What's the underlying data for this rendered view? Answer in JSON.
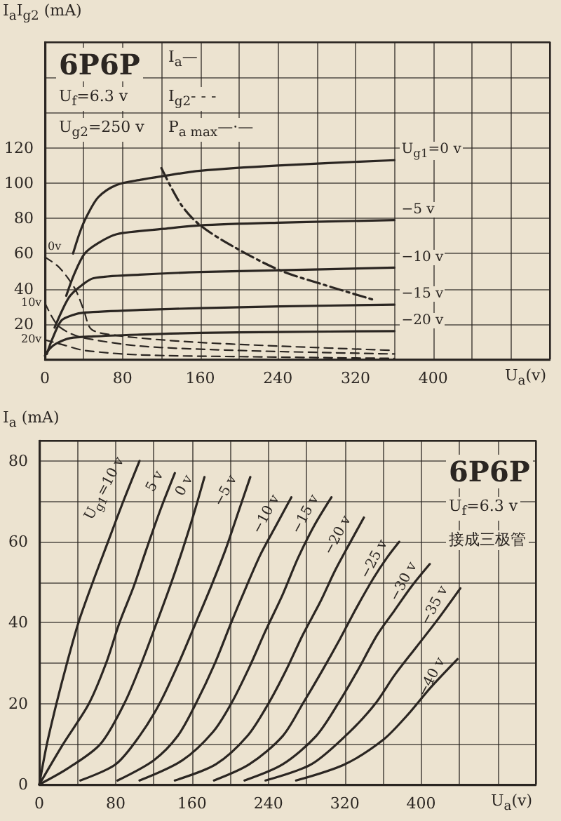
{
  "chart_data": [
    {
      "type": "line",
      "xlabel": "U$_{a}$(v)",
      "ylabel": "I$_{a}$I$_{g2}$ (mA)",
      "annotations": [
        "6P6P",
        "I$_{a}$—",
        "U$_{f}$=6.3 v",
        "I$_{g2}$- - -",
        "U$_{g2}$=250 v",
        "P$_{a max}$—·—"
      ],
      "xlim": [
        0,
        520
      ],
      "xticks": [
        0,
        {
          "value": 40,
          "label": null
        },
        80,
        {
          "value": 120,
          "label": null
        },
        160,
        {
          "value": 200,
          "label": null
        },
        240,
        {
          "value": 280,
          "label": null
        },
        320,
        {
          "value": 360,
          "label": null
        },
        400,
        {
          "value": 440,
          "label": null
        },
        {
          "value": 480,
          "label": null
        },
        {
          "value": 520,
          "label": null
        }
      ],
      "ylim": [
        0,
        180
      ],
      "yticks": [
        {
          "value": 0,
          "label": null
        },
        20,
        40,
        60,
        80,
        100,
        120,
        {
          "value": 140,
          "label": null
        },
        {
          "value": 160,
          "label": null
        },
        {
          "value": 180,
          "label": null
        }
      ],
      "grid": true,
      "marker": "none",
      "series": [
        {
          "name": "U$_{g1}$=0 v",
          "color": "#2b2622",
          "line_style": "solid",
          "x": [
            29,
            36,
            43,
            55,
            74,
            100,
            122,
            160,
            240,
            360
          ],
          "values": [
            60,
            72,
            81,
            92,
            99,
            102,
            104,
            107,
            110,
            113
          ]
        },
        {
          "name": "−5 v",
          "color": "#2b2622",
          "line_style": "solid",
          "x": [
            22,
            30,
            41,
            55,
            74,
            122,
            160,
            240,
            360
          ],
          "values": [
            36,
            48,
            60,
            66,
            71,
            74,
            76,
            77.5,
            79
          ]
        },
        {
          "name": "−10 v",
          "color": "#2b2622",
          "line_style": "solid",
          "x": [
            10,
            18,
            26,
            38,
            50,
            98,
            160,
            242,
            360
          ],
          "values": [
            18,
            28,
            36,
            42,
            46,
            48,
            49.5,
            50.5,
            52
          ]
        },
        {
          "name": "−15 v",
          "color": "#2b2622",
          "line_style": "solid",
          "x": [
            2,
            8,
            17,
            28,
            41,
            98,
            160,
            242,
            360
          ],
          "values": [
            3,
            12,
            22,
            25,
            26.5,
            28,
            29,
            30,
            31
          ]
        },
        {
          "name": "−20 v",
          "color": "#2b2622",
          "line_style": "solid",
          "x": [
            0,
            5,
            12,
            26,
            50,
            98,
            160,
            242,
            360
          ],
          "values": [
            2,
            6,
            9,
            12,
            13,
            14,
            15,
            15.5,
            16
          ]
        },
        {
          "name": "0v",
          "color": "#2b2622",
          "line_style": "dashed",
          "x": [
            0,
            15,
            31,
            40,
            48,
            74,
            146,
            240,
            360
          ],
          "values": [
            58,
            52,
            40,
            28,
            17,
            13.5,
            10,
            7.5,
            5
          ]
        },
        {
          "name": "10v",
          "color": "#2b2622",
          "line_style": "dashed",
          "x": [
            0,
            12,
            25,
            41,
            98,
            200,
            360
          ],
          "values": [
            32,
            20,
            15,
            12,
            7.5,
            5,
            3
          ]
        },
        {
          "name": "20v",
          "color": "#2b2622",
          "line_style": "dashed",
          "x": [
            0,
            20,
            41,
            98,
            200,
            360
          ],
          "values": [
            11,
            8,
            5,
            2.5,
            1.5,
            0.5
          ]
        },
        {
          "color": "#2b2622",
          "line_style": "dashdot",
          "x": [
            120,
            140,
            160,
            194,
            242,
            289,
            337
          ],
          "values": [
            108.5,
            88,
            76,
            64,
            50.5,
            42,
            34
          ]
        }
      ]
    },
    {
      "type": "line",
      "xlabel": "U$_{a}$(v)",
      "ylabel": "I$_{a}$ (mA)",
      "annotations": [
        "6P6P",
        "U$_{f}$=6.3 v",
        "接成三极管"
      ],
      "xlim": [
        0,
        520
      ],
      "xticks": [
        0,
        {
          "value": 40,
          "label": null
        },
        80,
        {
          "value": 120,
          "label": null
        },
        160,
        {
          "value": 200,
          "label": null
        },
        240,
        {
          "value": 280,
          "label": null
        },
        320,
        {
          "value": 360,
          "label": null
        },
        400,
        {
          "value": 440,
          "label": null
        },
        {
          "value": 480,
          "label": null
        },
        {
          "value": 520,
          "label": null
        }
      ],
      "ylim": [
        0,
        85
      ],
      "yticks": [
        0,
        {
          "value": 10,
          "label": null
        },
        20,
        {
          "value": 30,
          "label": null
        },
        40,
        {
          "value": 50,
          "label": null
        },
        60,
        {
          "value": 70,
          "label": null
        },
        80
      ],
      "grid": true,
      "marker": "none",
      "series": [
        {
          "name": "U$_{g1}$=10 v",
          "color": "#2b2622",
          "x": [
            0,
            8,
            18,
            29,
            41,
            56,
            72,
            88,
            105
          ],
          "values": [
            0,
            10,
            20,
            30,
            40,
            50,
            60,
            70,
            80
          ]
        },
        {
          "name": "5 v",
          "color": "#2b2622",
          "x": [
            0,
            25,
            52,
            70,
            84,
            99,
            112,
            127,
            142
          ],
          "values": [
            0,
            10,
            20,
            30,
            40,
            49,
            58,
            68,
            77
          ]
        },
        {
          "name": "0 v",
          "color": "#2b2622",
          "x": [
            0,
            30,
            64,
            89,
            107,
            123,
            137,
            150,
            162,
            173
          ],
          "values": [
            0,
            4,
            10,
            20,
            30,
            40,
            49,
            58,
            67,
            76
          ]
        },
        {
          "name": "−5 v",
          "color": "#2b2622",
          "x": [
            43,
            80,
            105,
            126,
            146,
            164,
            180,
            195,
            208,
            221
          ],
          "values": [
            1,
            5,
            12,
            20,
            30,
            40,
            49,
            58,
            67,
            76
          ]
        },
        {
          "name": "−10 v",
          "color": "#2b2622",
          "x": [
            82,
            120,
            145,
            164,
            184,
            201,
            217,
            232,
            248,
            264
          ],
          "values": [
            1,
            6,
            12,
            20,
            30,
            40,
            49,
            57,
            64,
            71
          ]
        },
        {
          "name": "−15 v",
          "color": "#2b2622",
          "x": [
            105,
            150,
            182,
            201,
            220,
            237,
            255,
            271,
            288,
            306
          ],
          "values": [
            1,
            6,
            13,
            20,
            29,
            38,
            47,
            56,
            64,
            71
          ]
        },
        {
          "name": "−20 v",
          "color": "#2b2622",
          "x": [
            142,
            185,
            218,
            240,
            258,
            276,
            294,
            310,
            326,
            340
          ],
          "values": [
            1,
            5,
            12,
            20,
            28,
            37,
            45,
            53,
            60,
            66
          ]
        },
        {
          "name": "−25 v",
          "color": "#2b2622",
          "x": [
            183,
            220,
            255,
            276,
            296,
            315,
            333,
            350,
            364,
            377
          ],
          "values": [
            1,
            5,
            12,
            20,
            28,
            36,
            44,
            51,
            56,
            60
          ]
        },
        {
          "name": "−30 v",
          "color": "#2b2622",
          "x": [
            215,
            255,
            290,
            313,
            333,
            354,
            372,
            390,
            409
          ],
          "values": [
            1,
            5,
            12,
            20,
            28,
            37,
            43,
            49,
            54.5
          ]
        },
        {
          "name": "−35 v",
          "color": "#2b2622",
          "x": [
            237,
            285,
            325,
            352,
            372,
            395,
            418,
            441
          ],
          "values": [
            1,
            5,
            13,
            20,
            27,
            34,
            41,
            48.5
          ]
        },
        {
          "name": "−40 v",
          "color": "#2b2622",
          "x": [
            269,
            320,
            360,
            385,
            410,
            438
          ],
          "values": [
            1,
            5,
            11,
            17,
            24,
            31
          ]
        }
      ]
    }
  ]
}
